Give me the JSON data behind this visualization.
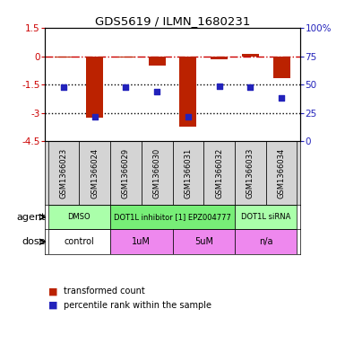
{
  "title": "GDS5619 / ILMN_1680231",
  "samples": [
    "GSM1366023",
    "GSM1366024",
    "GSM1366029",
    "GSM1366030",
    "GSM1366031",
    "GSM1366032",
    "GSM1366033",
    "GSM1366034"
  ],
  "transformed_counts": [
    -0.05,
    -3.25,
    -0.07,
    -0.5,
    -3.75,
    -0.15,
    0.12,
    -1.15
  ],
  "percentile_ranks": [
    48,
    22,
    48,
    44,
    22,
    49,
    48,
    38
  ],
  "ylim_left": [
    -4.5,
    1.5
  ],
  "ylim_right": [
    0,
    100
  ],
  "left_yticks": [
    1.5,
    0.0,
    -1.5,
    -3.0,
    -4.5
  ],
  "right_yticks": [
    100,
    75,
    50,
    25,
    0
  ],
  "left_ytick_labels": [
    "1.5",
    "0",
    "-1.5",
    "-3",
    "-4.5"
  ],
  "right_ytick_labels": [
    "100%",
    "75",
    "50",
    "25",
    "0"
  ],
  "bar_color": "#bb2200",
  "dot_color": "#2222bb",
  "hline_zero_color": "#cc0000",
  "hline_dotted_color": "#000000",
  "agent_groups": [
    {
      "label": "DMSO",
      "start": 0,
      "end": 2,
      "color": "#aaffaa"
    },
    {
      "label": "DOT1L inhibitor [1] EPZ004777",
      "start": 2,
      "end": 6,
      "color": "#77ee77"
    },
    {
      "label": "DOT1L siRNA",
      "start": 6,
      "end": 8,
      "color": "#aaffaa"
    }
  ],
  "dose_groups": [
    {
      "label": "control",
      "start": 0,
      "end": 2,
      "color": "#ffffff"
    },
    {
      "label": "1uM",
      "start": 2,
      "end": 4,
      "color": "#ee88ee"
    },
    {
      "label": "5uM",
      "start": 4,
      "end": 6,
      "color": "#ee88ee"
    },
    {
      "label": "n/a",
      "start": 6,
      "end": 8,
      "color": "#ee88ee"
    }
  ],
  "agent_label": "agent",
  "dose_label": "dose",
  "legend1": "transformed count",
  "legend2": "percentile rank within the sample",
  "bg_color": "#ffffff",
  "plot_bg": "#ffffff",
  "sample_box_color": "#d4d4d4"
}
